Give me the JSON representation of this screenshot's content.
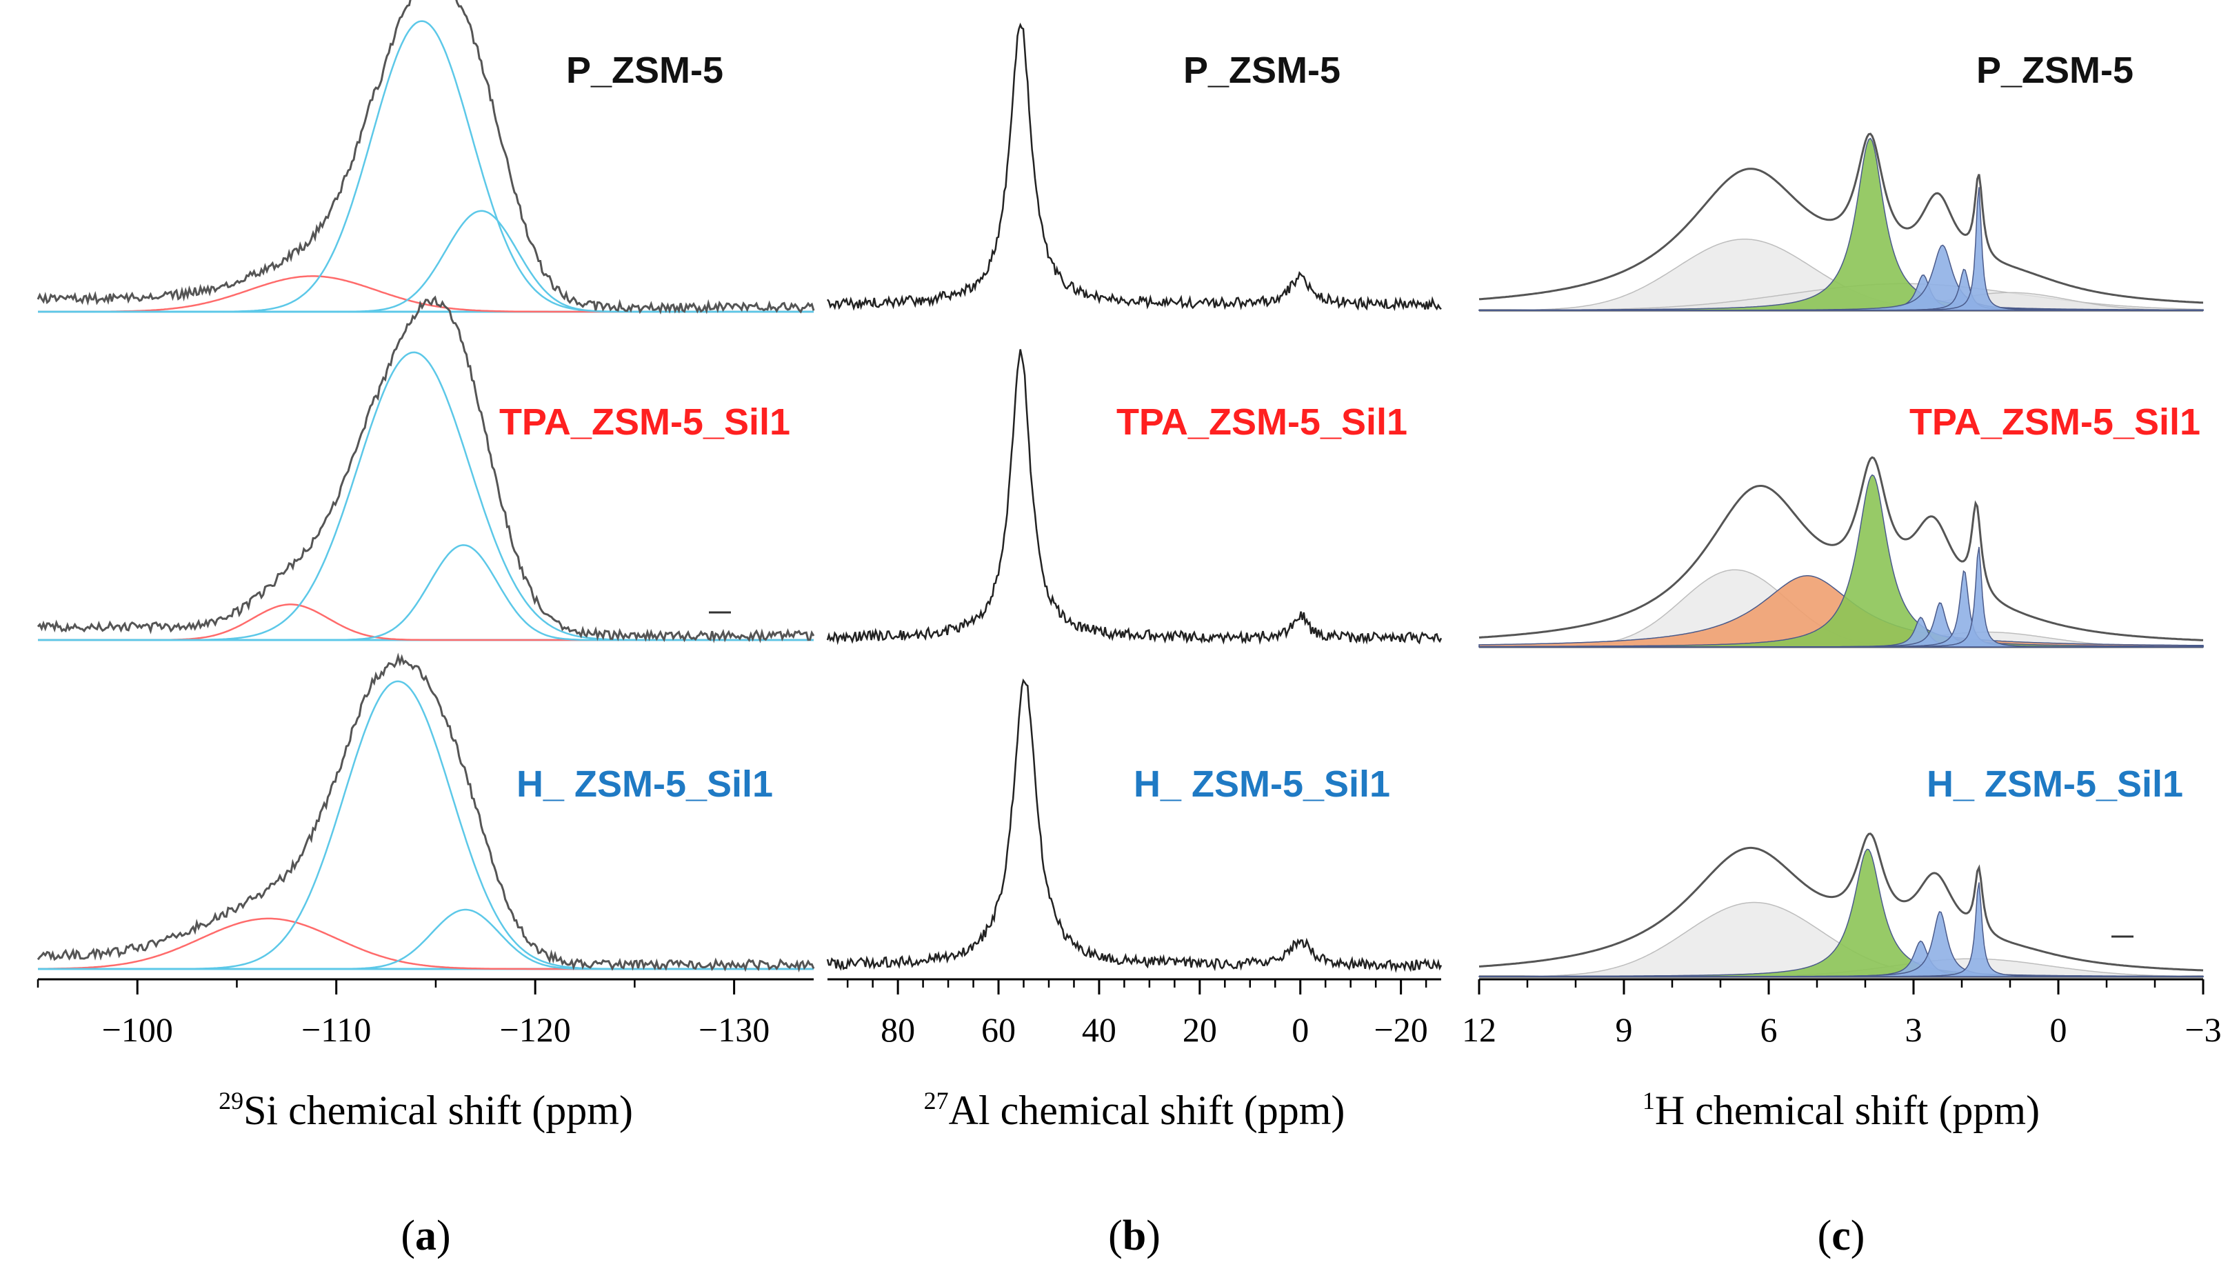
{
  "colors": {
    "envelope": "#555555",
    "si_q4": "#5cc8e8",
    "si_q3": "#ff6b6b",
    "al_line": "#222222",
    "h_gray": "#e6e6e6",
    "h_green": "#8cc456",
    "h_orange": "#f0a070",
    "h_blue": "#8fb0e6",
    "label_p": "#111111",
    "label_tpa": "#ff2020",
    "label_h": "#1f7ac4"
  },
  "chart_data": [
    {
      "panel": "a",
      "type": "line",
      "nucleus": "29Si",
      "xlabel": {
        "sup": "29",
        "main": "Si chemical shift (ppm)"
      },
      "xlim": [
        -95,
        -134
      ],
      "xticks": [
        -100,
        -110,
        -120,
        -130
      ],
      "tick_labels": [
        "−100",
        "−110",
        "−120",
        "−130"
      ],
      "panel_label": "a",
      "samples": [
        {
          "name": "P_ZSM-5",
          "style": "p",
          "baseline_ppm": -95,
          "components": [
            {
              "kind": "q3",
              "center": -108.8,
              "width": 3.2,
              "height": 0.12
            },
            {
              "kind": "q4",
              "center": -114.3,
              "width": 2.5,
              "height": 0.98
            },
            {
              "kind": "q4",
              "center": -117.3,
              "width": 1.8,
              "height": 0.34
            }
          ]
        },
        {
          "name": "TPA_ZSM-5_Sil1",
          "style": "tpa",
          "components": [
            {
              "kind": "q3",
              "center": -107.7,
              "width": 1.9,
              "height": 0.12
            },
            {
              "kind": "q4",
              "center": -113.9,
              "width": 2.8,
              "height": 0.97
            },
            {
              "kind": "q4",
              "center": -116.4,
              "width": 1.7,
              "height": 0.32
            }
          ]
        },
        {
          "name": "H_ZSM-5_Sil1",
          "display_name": "H_ ZSM-5_Sil1",
          "style": "h",
          "components": [
            {
              "kind": "q3",
              "center": -106.6,
              "width": 3.4,
              "height": 0.17
            },
            {
              "kind": "q4",
              "center": -113.1,
              "width": 2.7,
              "height": 0.97
            },
            {
              "kind": "q4",
              "center": -116.5,
              "width": 1.7,
              "height": 0.2
            }
          ]
        }
      ]
    },
    {
      "panel": "b",
      "type": "line",
      "nucleus": "27Al",
      "xlabel": {
        "sup": "27",
        "main": "Al chemical shift (ppm)"
      },
      "xlim": [
        94,
        -28
      ],
      "xticks": [
        80,
        60,
        40,
        20,
        0,
        -20
      ],
      "tick_labels": [
        "80",
        "60",
        "40",
        "20",
        "0",
        "−20"
      ],
      "panel_label": "b",
      "samples": [
        {
          "name": "P_ZSM-5",
          "style": "p",
          "peaks": [
            {
              "center": 55.6,
              "width": 2.6,
              "height": 0.95
            },
            {
              "center": 0.0,
              "width": 2.5,
              "height": 0.09
            }
          ]
        },
        {
          "name": "TPA_ZSM-5_Sil1",
          "style": "tpa",
          "peaks": [
            {
              "center": 55.6,
              "width": 2.4,
              "height": 0.97
            },
            {
              "center": 0.0,
              "width": 1.6,
              "height": 0.08
            }
          ]
        },
        {
          "name": "H_ZSM-5_Sil1",
          "display_name": "H_ ZSM-5_Sil1",
          "style": "h",
          "peaks": [
            {
              "center": 54.8,
              "width": 2.8,
              "height": 0.97
            },
            {
              "center": 0.0,
              "width": 2.6,
              "height": 0.08
            }
          ]
        }
      ]
    },
    {
      "panel": "c",
      "type": "area",
      "nucleus": "1H",
      "xlabel": {
        "sup": "1",
        "main": "H chemical shift (ppm)"
      },
      "xlim": [
        12,
        -3
      ],
      "xticks": [
        12,
        9,
        6,
        3,
        0,
        -3
      ],
      "tick_labels": [
        "12",
        "9",
        "6",
        "3",
        "0",
        "−3"
      ],
      "panel_label": "c",
      "samples": [
        {
          "name": "P_ZSM-5",
          "style": "p",
          "components": [
            {
              "kind": "gray",
              "center": 6.5,
              "width": 1.4,
              "height": 0.24
            },
            {
              "kind": "gray",
              "center": 3.2,
              "width": 2.4,
              "height": 0.09
            },
            {
              "kind": "gray",
              "center": 1.0,
              "width": 1.2,
              "height": 0.06
            },
            {
              "kind": "green",
              "center": 3.9,
              "width": 0.35,
              "height": 0.58
            },
            {
              "kind": "blue",
              "center": 2.8,
              "width": 0.17,
              "height": 0.12
            },
            {
              "kind": "blue",
              "center": 2.4,
              "width": 0.25,
              "height": 0.22
            },
            {
              "kind": "blue",
              "center": 1.95,
              "width": 0.12,
              "height": 0.14
            },
            {
              "kind": "blue",
              "center": 1.65,
              "width": 0.07,
              "height": 0.42
            }
          ],
          "envelope": [
            [
              6.4,
              0.46,
              1.6
            ],
            [
              3.9,
              0.42,
              0.35
            ],
            [
              2.5,
              0.26,
              0.45
            ],
            [
              1.65,
              0.28,
              0.1
            ],
            [
              1.0,
              0.08,
              1.5
            ]
          ]
        },
        {
          "name": "TPA_ZSM-5_Sil1",
          "style": "tpa",
          "components": [
            {
              "kind": "gray",
              "center": 6.7,
              "width": 1.1,
              "height": 0.26
            },
            {
              "kind": "gray",
              "center": 1.5,
              "width": 1.3,
              "height": 0.05
            },
            {
              "kind": "orange",
              "center": 5.2,
              "width": 1.2,
              "height": 0.24
            },
            {
              "kind": "green",
              "center": 3.85,
              "width": 0.38,
              "height": 0.58
            },
            {
              "kind": "blue",
              "center": 2.85,
              "width": 0.15,
              "height": 0.1
            },
            {
              "kind": "blue",
              "center": 2.45,
              "width": 0.15,
              "height": 0.15
            },
            {
              "kind": "blue",
              "center": 1.95,
              "width": 0.11,
              "height": 0.26
            },
            {
              "kind": "blue",
              "center": 1.65,
              "width": 0.08,
              "height": 0.34
            }
          ],
          "envelope": [
            [
              6.2,
              0.52,
              1.4
            ],
            [
              3.85,
              0.44,
              0.38
            ],
            [
              2.6,
              0.3,
              0.55
            ],
            [
              1.7,
              0.3,
              0.12
            ],
            [
              1.2,
              0.05,
              1.6
            ]
          ]
        },
        {
          "name": "H_ZSM-5_Sil1",
          "display_name": "H_ ZSM-5_Sil1",
          "style": "h",
          "components": [
            {
              "kind": "gray",
              "center": 6.3,
              "width": 1.4,
              "height": 0.25
            },
            {
              "kind": "gray",
              "center": 1.8,
              "width": 1.6,
              "height": 0.06
            },
            {
              "kind": "green",
              "center": 3.95,
              "width": 0.35,
              "height": 0.43
            },
            {
              "kind": "blue",
              "center": 2.85,
              "width": 0.18,
              "height": 0.12
            },
            {
              "kind": "blue",
              "center": 2.45,
              "width": 0.18,
              "height": 0.22
            },
            {
              "kind": "blue",
              "center": 1.65,
              "width": 0.08,
              "height": 0.32
            }
          ],
          "envelope": [
            [
              6.4,
              0.42,
              1.6
            ],
            [
              3.9,
              0.32,
              0.35
            ],
            [
              2.55,
              0.24,
              0.5
            ],
            [
              1.65,
              0.22,
              0.1
            ],
            [
              1.0,
              0.05,
              1.5
            ]
          ]
        }
      ]
    }
  ]
}
